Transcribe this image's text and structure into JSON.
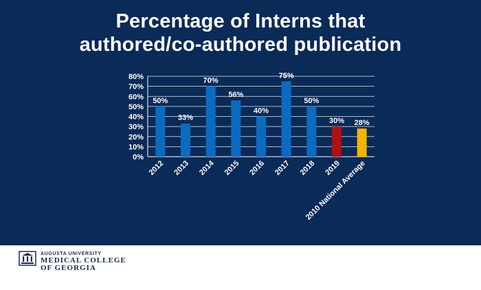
{
  "title_line1": "Percentage of Interns that",
  "title_line2": "authored/co-authored publication",
  "chart_data": {
    "type": "bar",
    "categories": [
      "2012",
      "2013",
      "2014",
      "2015",
      "2016",
      "2017",
      "2018",
      "2019",
      "2010 National Average"
    ],
    "values": [
      50,
      33,
      70,
      56,
      40,
      75,
      50,
      30,
      28
    ],
    "data_labels": [
      "50%",
      "33%",
      "70%",
      "56%",
      "40%",
      "75%",
      "50%",
      "30%",
      "28%"
    ],
    "colors": [
      "#0b6bc1",
      "#0b6bc1",
      "#0b6bc1",
      "#0b6bc1",
      "#0b6bc1",
      "#0b6bc1",
      "#0b6bc1",
      "#b10f12",
      "#f2b400"
    ],
    "ylim": [
      0,
      80
    ],
    "yticks": [
      "0%",
      "10%",
      "20%",
      "30%",
      "40%",
      "50%",
      "60%",
      "70%",
      "80%"
    ],
    "grid": true,
    "title": "Percentage of Interns that authored/co-authored publication",
    "xlabel": "",
    "ylabel": ""
  },
  "footer": {
    "logo_icon": "university-seal-icon",
    "university": "AUGUSTA UNIVERSITY",
    "college_line1": "MEDICAL COLLEGE",
    "college_line2": "OF GEORGIA"
  },
  "colors": {
    "slide_background": "#0a2a57",
    "gridline": "#ffffff",
    "text": "#ffffff"
  }
}
